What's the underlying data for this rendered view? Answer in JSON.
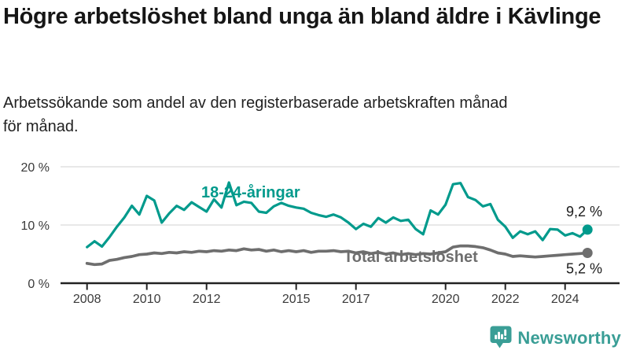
{
  "header": {
    "title": "Högre arbetslöshet bland unga än bland äldre i Kävlinge",
    "subtitle": "Arbetssökande som andel av den registerbaserade arbetskraften månad för månad."
  },
  "chart_data": {
    "type": "line",
    "x_start": 2008.0,
    "x_step": 0.25,
    "xlim": [
      2007.1,
      2025.8
    ],
    "ylim": [
      0,
      20
    ],
    "grid": "horizontal",
    "legend": "inline-labels",
    "x_ticks": [
      2008,
      2010,
      2012,
      2015,
      2017,
      2020,
      2022,
      2024
    ],
    "x_tick_labels": [
      "2008",
      "2010",
      "2012",
      "2015",
      "2017",
      "2020",
      "2022",
      "2024"
    ],
    "y_ticks": [
      0,
      10,
      20
    ],
    "y_tick_labels": [
      "0 %",
      "10 %",
      "20 %"
    ],
    "axis_color": "#222222",
    "grid_color": "#d9d9d9",
    "tick_label_color": "#3a3a3a",
    "annotation_color": "#1c1c1c",
    "series": [
      {
        "name": "18-24-åringar",
        "color": "#009a8c",
        "end_label": "9,2 %",
        "end_value": 9.2,
        "values": [
          6.2,
          7.2,
          6.3,
          7.9,
          9.7,
          11.3,
          13.3,
          11.8,
          15.0,
          14.2,
          10.4,
          12.0,
          13.3,
          12.6,
          13.9,
          13.1,
          12.3,
          14.4,
          13.0,
          17.3,
          13.4,
          14.0,
          13.8,
          12.3,
          12.1,
          13.2,
          13.8,
          13.3,
          13.0,
          12.8,
          12.1,
          11.7,
          11.4,
          11.8,
          11.3,
          10.4,
          9.3,
          10.2,
          9.7,
          11.2,
          10.4,
          11.3,
          10.7,
          10.9,
          9.3,
          8.4,
          12.5,
          11.8,
          13.5,
          17.0,
          17.2,
          14.8,
          14.3,
          13.2,
          13.6,
          10.9,
          9.7,
          7.8,
          8.9,
          8.4,
          8.9,
          7.4,
          9.3,
          9.2,
          8.2,
          8.6,
          8.0,
          9.2
        ]
      },
      {
        "name": "Total arbetslöshet",
        "color": "#6e6e6e",
        "end_label": "5,2 %",
        "end_value": 5.2,
        "values": [
          3.4,
          3.2,
          3.3,
          3.9,
          4.1,
          4.4,
          4.6,
          4.9,
          5.0,
          5.2,
          5.1,
          5.3,
          5.2,
          5.4,
          5.3,
          5.5,
          5.4,
          5.6,
          5.5,
          5.7,
          5.6,
          5.9,
          5.7,
          5.8,
          5.5,
          5.7,
          5.4,
          5.6,
          5.4,
          5.6,
          5.3,
          5.5,
          5.5,
          5.6,
          5.4,
          5.5,
          5.2,
          5.4,
          5.1,
          5.3,
          5.0,
          5.2,
          4.9,
          5.1,
          4.9,
          5.1,
          5.0,
          5.2,
          5.4,
          6.2,
          6.4,
          6.4,
          6.3,
          6.1,
          5.7,
          5.2,
          5.0,
          4.6,
          4.7,
          4.6,
          4.5,
          4.6,
          4.7,
          4.8,
          4.9,
          5.0,
          5.1,
          5.2
        ]
      }
    ]
  },
  "branding": {
    "logo_text": "Newsworthy",
    "logo_color": "#3a9e96",
    "logo_icon": "bar-chart-speech-bubble-icon"
  }
}
